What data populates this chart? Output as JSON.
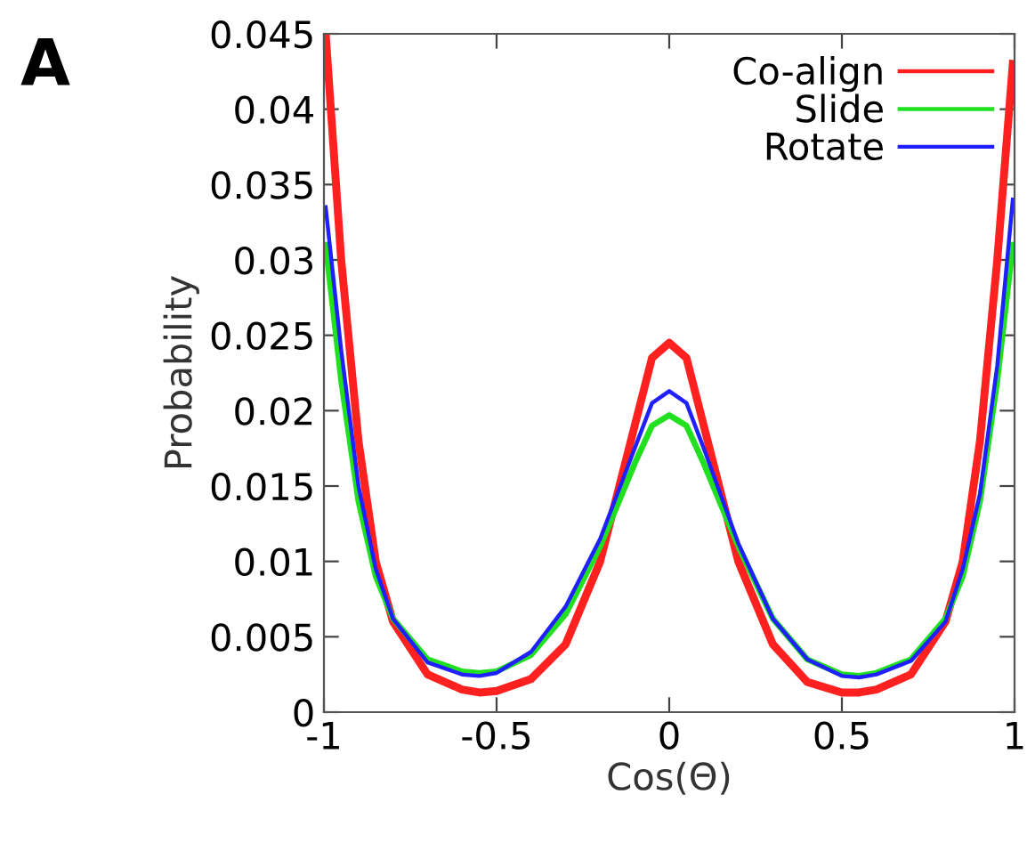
{
  "chart_data": {
    "type": "line",
    "xlabel": "Cos(Θ)",
    "ylabel": "Probability",
    "annotations": [
      "A"
    ],
    "xlim": [
      -1,
      1
    ],
    "ylim": [
      0,
      0.045
    ],
    "xticks": [
      -1,
      -0.5,
      0,
      0.5,
      1
    ],
    "yticks": [
      0,
      0.005,
      0.01,
      0.015,
      0.02,
      0.025,
      0.03,
      0.035,
      0.04,
      0.045
    ],
    "grid": false,
    "legend": "top right",
    "marker": "none",
    "line_style": "solid",
    "series": [
      {
        "name": "Co-align",
        "color": "#ff2020",
        "x": [
          -0.995,
          -0.95,
          -0.9,
          -0.85,
          -0.8,
          -0.7,
          -0.6,
          -0.55,
          -0.5,
          -0.4,
          -0.3,
          -0.2,
          -0.1,
          -0.05,
          0,
          0.05,
          0.1,
          0.2,
          0.3,
          0.4,
          0.5,
          0.55,
          0.6,
          0.7,
          0.8,
          0.85,
          0.9,
          0.95,
          0.995
        ],
        "values": [
          0.045,
          0.03,
          0.018,
          0.01,
          0.006,
          0.0025,
          0.0015,
          0.0013,
          0.0014,
          0.0022,
          0.0045,
          0.01,
          0.019,
          0.0235,
          0.0245,
          0.0235,
          0.019,
          0.01,
          0.0045,
          0.002,
          0.0013,
          0.0013,
          0.0015,
          0.0025,
          0.006,
          0.01,
          0.018,
          0.03,
          0.043
        ]
      },
      {
        "name": "Slide",
        "color": "#20e020",
        "x": [
          -0.995,
          -0.95,
          -0.9,
          -0.85,
          -0.8,
          -0.7,
          -0.6,
          -0.55,
          -0.5,
          -0.4,
          -0.3,
          -0.2,
          -0.1,
          -0.05,
          0,
          0.05,
          0.1,
          0.2,
          0.3,
          0.4,
          0.5,
          0.55,
          0.6,
          0.7,
          0.8,
          0.85,
          0.9,
          0.95,
          0.995
        ],
        "values": [
          0.031,
          0.022,
          0.014,
          0.009,
          0.0062,
          0.0035,
          0.0027,
          0.0026,
          0.0027,
          0.0038,
          0.0065,
          0.011,
          0.0165,
          0.019,
          0.0197,
          0.019,
          0.0165,
          0.011,
          0.0062,
          0.0035,
          0.0025,
          0.0024,
          0.0026,
          0.0035,
          0.0062,
          0.009,
          0.014,
          0.022,
          0.031
        ]
      },
      {
        "name": "Rotate",
        "color": "#2020ff",
        "x": [
          -0.995,
          -0.95,
          -0.9,
          -0.85,
          -0.8,
          -0.7,
          -0.6,
          -0.55,
          -0.5,
          -0.4,
          -0.3,
          -0.2,
          -0.1,
          -0.05,
          0,
          0.05,
          0.1,
          0.2,
          0.3,
          0.4,
          0.5,
          0.55,
          0.6,
          0.7,
          0.8,
          0.85,
          0.9,
          0.95,
          0.995
        ],
        "values": [
          0.0335,
          0.024,
          0.015,
          0.0095,
          0.0062,
          0.0033,
          0.0025,
          0.0024,
          0.0026,
          0.004,
          0.007,
          0.0115,
          0.0175,
          0.0205,
          0.0213,
          0.0205,
          0.0175,
          0.0112,
          0.0062,
          0.0035,
          0.0024,
          0.0023,
          0.0025,
          0.0034,
          0.006,
          0.0095,
          0.0145,
          0.023,
          0.034
        ]
      }
    ]
  }
}
